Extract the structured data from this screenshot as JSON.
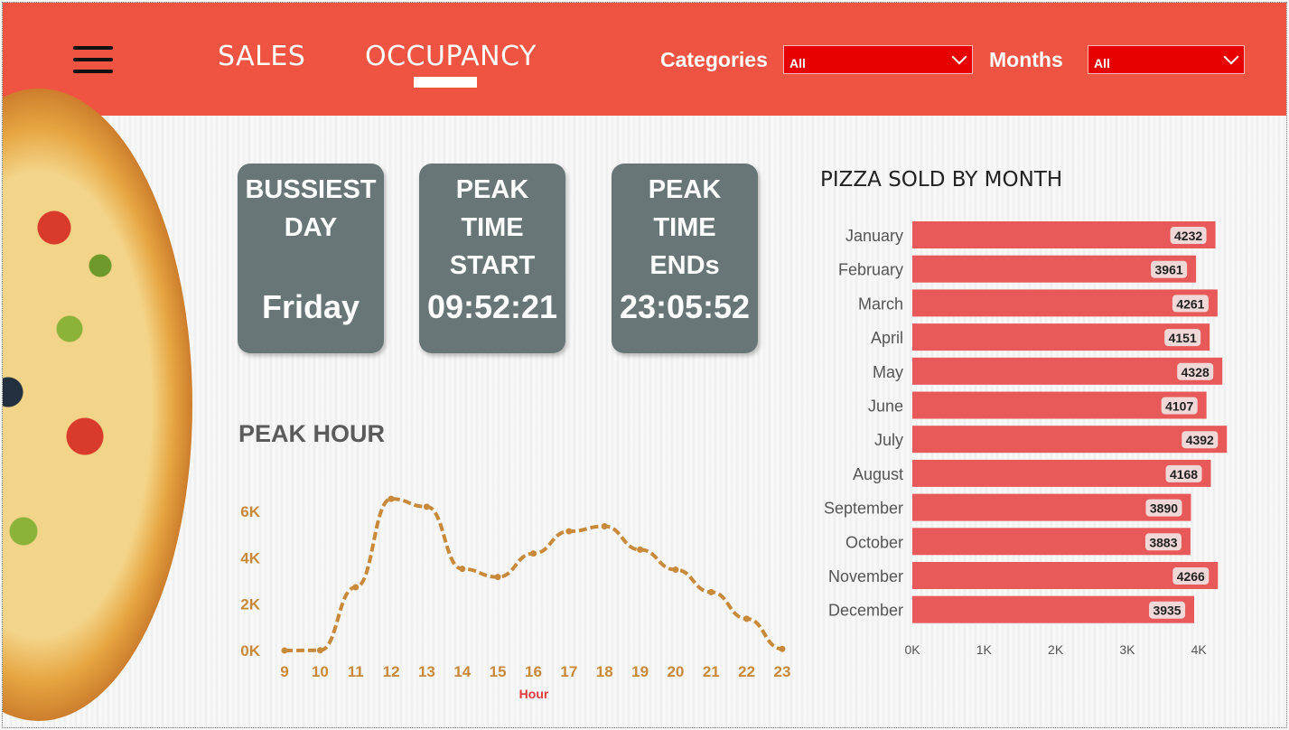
{
  "header": {
    "tabs": [
      {
        "label": "SALES"
      },
      {
        "label": "OCCUPANCY"
      }
    ],
    "filters": {
      "categories_label": "Categories",
      "categories_value": "All",
      "months_label": "Months",
      "months_value": "All"
    },
    "colors": {
      "header_bg": "#ef5442",
      "dropdown_bg": "#e60000"
    }
  },
  "kpis": {
    "busiest_day": {
      "title": "BUSSIEST\nDAY",
      "value": "Friday"
    },
    "peak_start": {
      "title": "PEAK\nTIME\nSTART",
      "value": "09:52:21"
    },
    "peak_end": {
      "title": "PEAK\nTIME\nENDs",
      "value": "23:05:52"
    }
  },
  "chart_data": [
    {
      "type": "line",
      "title": "PEAK HOUR",
      "xlabel": "Hour",
      "ylabel": "",
      "x": [
        9,
        10,
        11,
        12,
        13,
        14,
        15,
        16,
        17,
        18,
        19,
        20,
        21,
        22,
        23
      ],
      "values": [
        1,
        8,
        2728,
        6543,
        6203,
        3521,
        3170,
        4185,
        5143,
        5359,
        4350,
        3487,
        2520,
        1370,
        68
      ],
      "yticks": [
        "0K",
        "2K",
        "4K",
        "6K"
      ],
      "ylim": [
        0,
        7000
      ],
      "color": "#c9893a",
      "style": "dashed",
      "grid": false
    },
    {
      "type": "bar",
      "orientation": "horizontal",
      "title": "PIZZA SOLD BY MONTH",
      "categories": [
        "January",
        "February",
        "March",
        "April",
        "May",
        "June",
        "July",
        "August",
        "September",
        "October",
        "November",
        "December"
      ],
      "values": [
        4232,
        3961,
        4261,
        4151,
        4328,
        4107,
        4392,
        4168,
        3890,
        3883,
        4266,
        3935
      ],
      "xticks": [
        "0K",
        "1K",
        "2K",
        "3K",
        "4K"
      ],
      "xlim": [
        0,
        4200
      ],
      "color": "#e85a5a",
      "data_labels": true
    }
  ]
}
